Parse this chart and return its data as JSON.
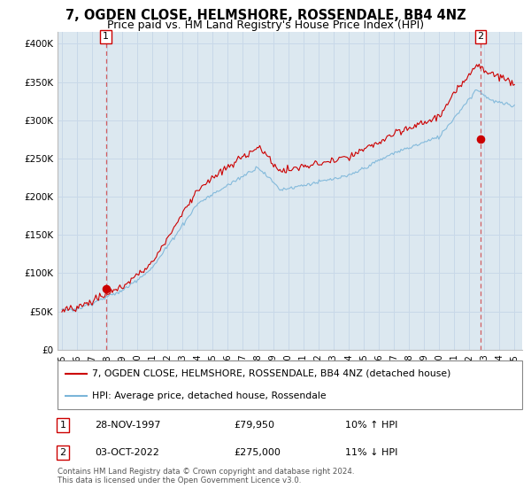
{
  "title": "7, OGDEN CLOSE, HELMSHORE, ROSSENDALE, BB4 4NZ",
  "subtitle": "Price paid vs. HM Land Registry's House Price Index (HPI)",
  "title_fontsize": 10.5,
  "subtitle_fontsize": 9,
  "ylabel_ticks": [
    "£0",
    "£50K",
    "£100K",
    "£150K",
    "£200K",
    "£250K",
    "£300K",
    "£350K",
    "£400K"
  ],
  "ytick_values": [
    0,
    50000,
    100000,
    150000,
    200000,
    250000,
    300000,
    350000,
    400000
  ],
  "ylim": [
    0,
    415000
  ],
  "xlim_start": 1994.7,
  "xlim_end": 2025.5,
  "hpi_color": "#7ab5d9",
  "price_color": "#cc0000",
  "dot_color": "#cc0000",
  "grid_color": "#c8d8e8",
  "plot_bg_color": "#dce8f0",
  "background_color": "#ffffff",
  "sale1_label": "1",
  "sale1_date": "28-NOV-1997",
  "sale1_price": "£79,950",
  "sale1_hpi": "10% ↑ HPI",
  "sale1_year": 1997.91,
  "sale1_value": 79950,
  "sale2_label": "2",
  "sale2_date": "03-OCT-2022",
  "sale2_price": "£275,000",
  "sale2_hpi": "11% ↓ HPI",
  "sale2_year": 2022.75,
  "sale2_value": 275000,
  "legend_line1": "7, OGDEN CLOSE, HELMSHORE, ROSSENDALE, BB4 4NZ (detached house)",
  "legend_line2": "HPI: Average price, detached house, Rossendale",
  "footnote": "Contains HM Land Registry data © Crown copyright and database right 2024.\nThis data is licensed under the Open Government Licence v3.0.",
  "xtick_years": [
    1995,
    1996,
    1997,
    1998,
    1999,
    2000,
    2001,
    2002,
    2003,
    2004,
    2005,
    2006,
    2007,
    2008,
    2009,
    2010,
    2011,
    2012,
    2013,
    2014,
    2015,
    2016,
    2017,
    2018,
    2019,
    2020,
    2021,
    2022,
    2023,
    2024,
    2025
  ]
}
